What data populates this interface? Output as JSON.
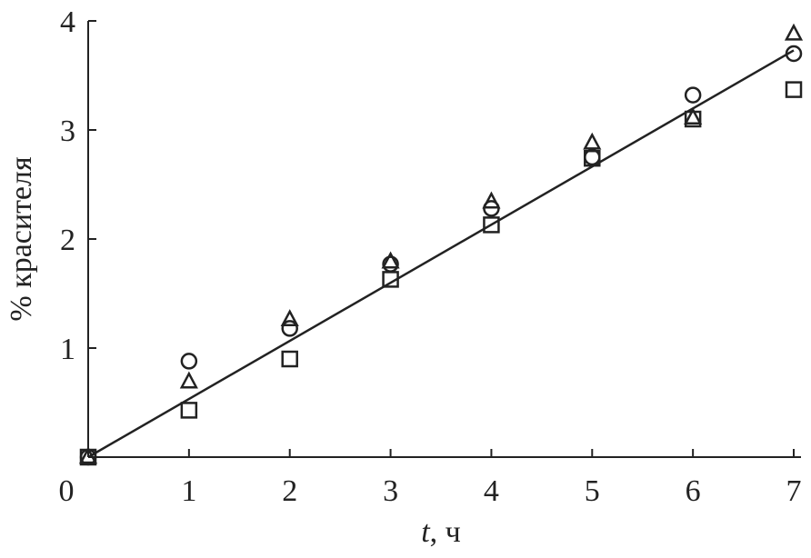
{
  "chart_data": {
    "type": "scatter",
    "x_label": [
      "t",
      ", ч"
    ],
    "y_label": "% красителя",
    "xlim": [
      0,
      7
    ],
    "xticks": [
      0,
      1,
      2,
      3,
      4,
      5,
      6,
      7
    ],
    "ylim": [
      0,
      4
    ],
    "yticks": [
      1,
      2,
      3,
      4
    ],
    "color": "#222222",
    "series": [
      {
        "marker": "circle",
        "x": [
          0,
          1,
          2,
          3,
          4,
          5,
          6,
          7
        ],
        "values": [
          0,
          0.88,
          1.18,
          1.77,
          2.28,
          2.75,
          3.32,
          3.7
        ]
      },
      {
        "marker": "triangle",
        "x": [
          0,
          1,
          2,
          3,
          4,
          5,
          6,
          7
        ],
        "values": [
          0,
          0.69,
          1.26,
          1.79,
          2.34,
          2.88,
          3.11,
          3.88
        ]
      },
      {
        "marker": "square",
        "x": [
          0,
          1,
          2,
          3,
          4,
          5,
          6,
          7
        ],
        "values": [
          0,
          0.43,
          0.9,
          1.63,
          2.13,
          2.74,
          3.1,
          3.37
        ]
      }
    ],
    "fit_line": {
      "x": [
        0,
        7
      ],
      "values": [
        0,
        3.73
      ]
    }
  }
}
